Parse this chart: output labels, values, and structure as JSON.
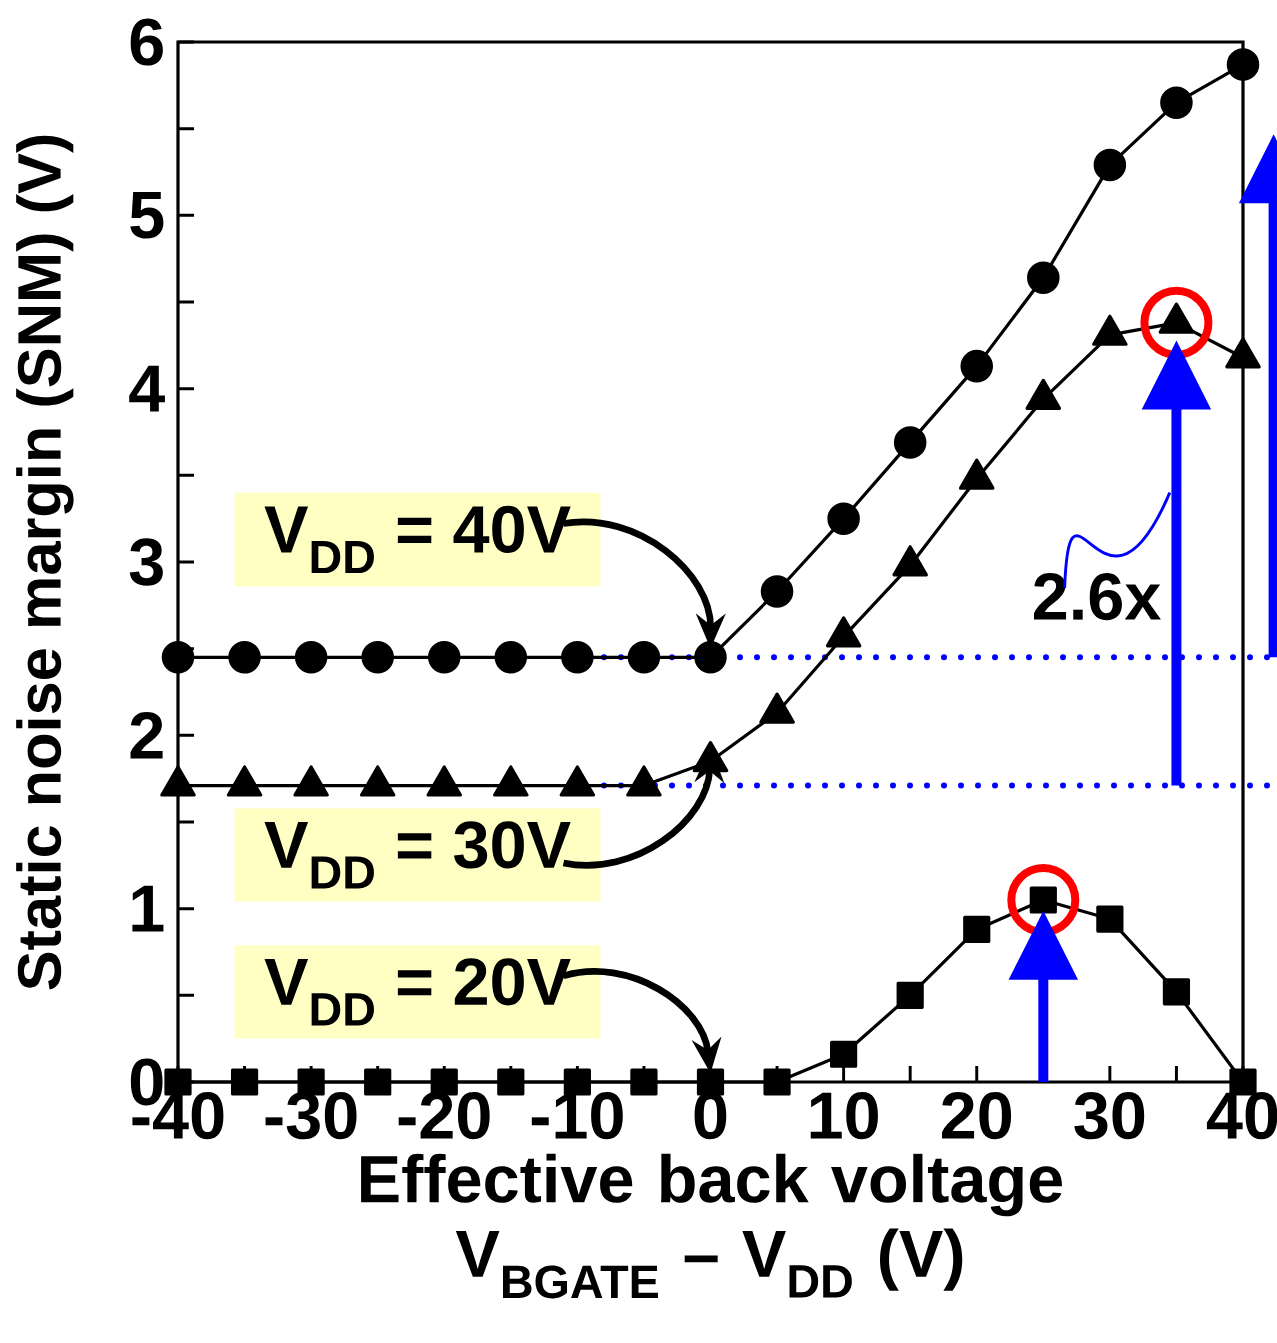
{
  "chart_data": {
    "type": "line",
    "xlabel": "Effective back voltage V$_{BGATE}$ – V$_{DD}$ (V)",
    "ylabel": "Static noise margin (SNM) (V)",
    "x": [
      -40,
      -35,
      -30,
      -25,
      -20,
      -15,
      -10,
      -5,
      0,
      5,
      10,
      15,
      20,
      25,
      30,
      35,
      40
    ],
    "series": [
      {
        "name": "V$_{DD}$ = 40V",
        "color": "#000000",
        "marker": "circle",
        "values": [
          2.45,
          2.45,
          2.45,
          2.45,
          2.45,
          2.45,
          2.45,
          2.45,
          2.45,
          2.83,
          3.25,
          3.69,
          4.13,
          4.64,
          5.29,
          5.65,
          5.87
        ]
      },
      {
        "name": "V$_{DD}$ = 30V",
        "color": "#000000",
        "marker": "triangle",
        "values": [
          1.71,
          1.71,
          1.71,
          1.71,
          1.71,
          1.71,
          1.71,
          1.71,
          1.85,
          2.13,
          2.57,
          2.98,
          3.48,
          3.94,
          4.31,
          4.38,
          4.18
        ]
      },
      {
        "name": "V$_{DD}$ = 20V",
        "color": "#000000",
        "marker": "square",
        "values": [
          0,
          0,
          0,
          0,
          0,
          0,
          0,
          0,
          0,
          0,
          0.16,
          0.5,
          0.88,
          1.05,
          0.94,
          0.52,
          0
        ]
      }
    ],
    "xlim": [
      -40,
      40
    ],
    "ylim": [
      0,
      6
    ],
    "xticks": [
      -40,
      -30,
      -20,
      -10,
      0,
      10,
      20,
      30,
      40
    ],
    "yticks": [
      0,
      1,
      2,
      3,
      4,
      5,
      6
    ],
    "ref_lines": [
      {
        "axis": "y",
        "value": 2.45,
        "color": "#0000ff",
        "line_style": "dotted"
      },
      {
        "axis": "y",
        "value": 1.71,
        "color": "#0000ff",
        "line_style": "dotted"
      }
    ],
    "annotations": [
      "2.6x"
    ],
    "grid": false,
    "legend": "left",
    "line_style": "solid"
  }
}
